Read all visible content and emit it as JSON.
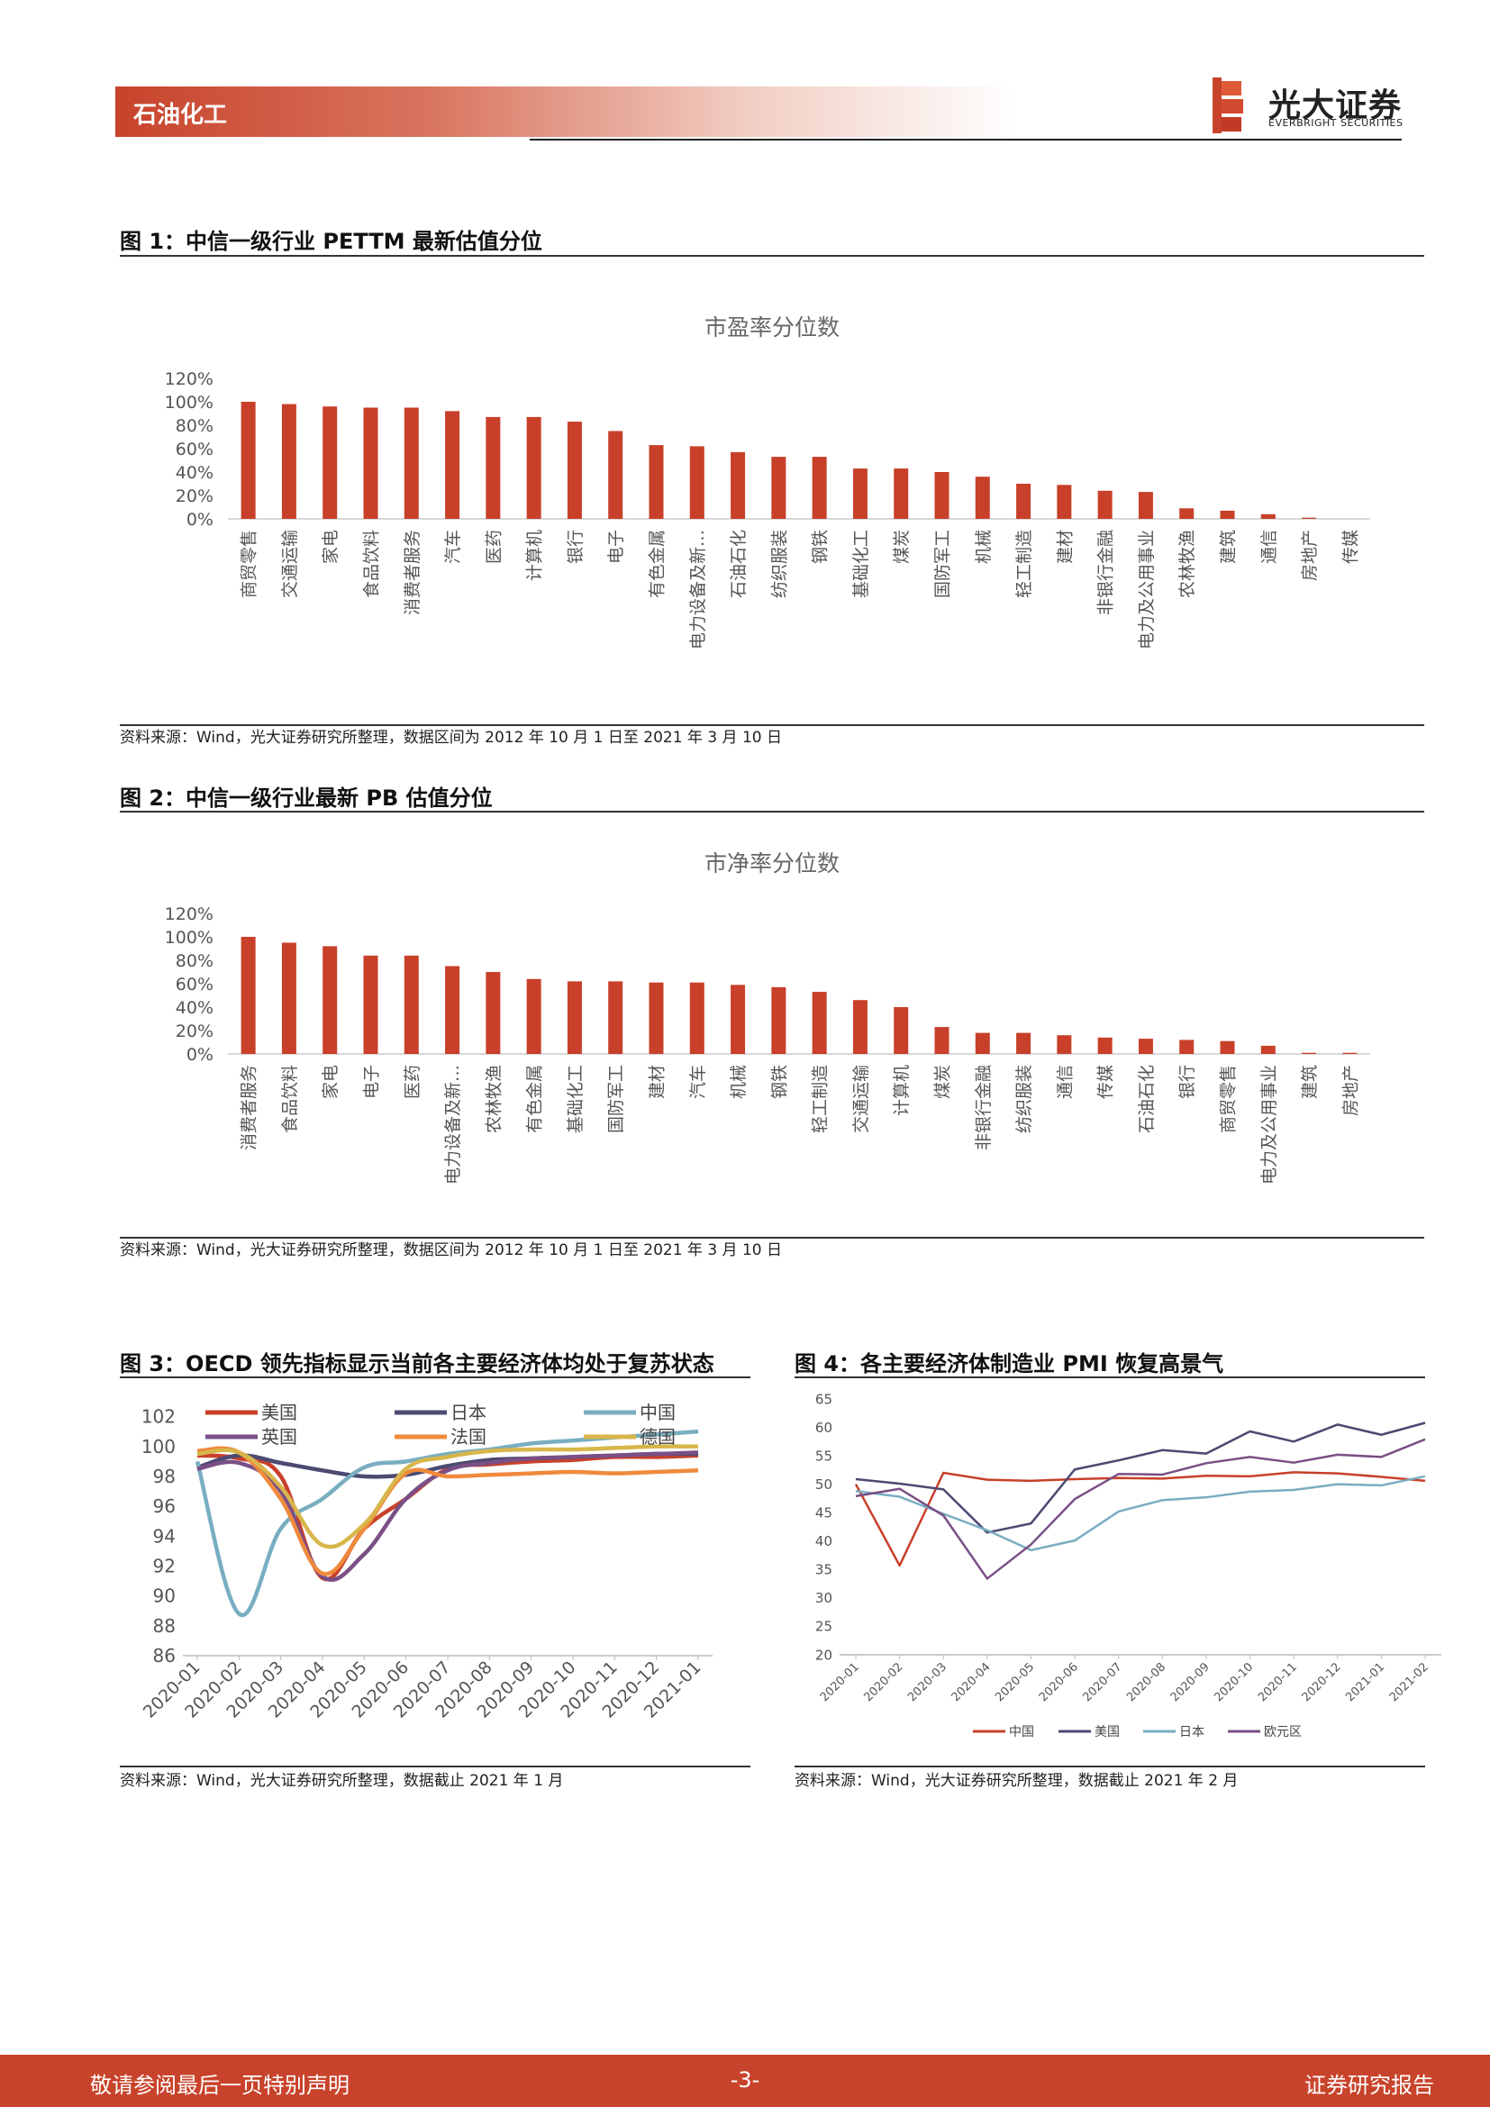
{
  "header": {
    "section": "石油化工",
    "logo_cn": "光大证券",
    "logo_en": "EVERBRIGHT SECURITIES"
  },
  "figures": {
    "fig1": {
      "title": "图 1：中信一级行业 PETTM 最新估值分位",
      "source": "资料来源：Wind，光大证券研究所整理，数据区间为 2012 年 10 月 1 日至 2021 年 3 月 10 日"
    },
    "fig2": {
      "title": "图 2：中信一级行业最新 PB 估值分位",
      "source": "资料来源：Wind，光大证券研究所整理，数据区间为 2012 年 10 月 1 日至 2021 年 3 月 10 日"
    },
    "fig3": {
      "title": "图 3：OECD 领先指标显示当前各主要经济体均处于复苏状态",
      "source": "资料来源：Wind，光大证券研究所整理，数据截止 2021 年 1 月"
    },
    "fig4": {
      "title": "图 4：各主要经济体制造业 PMI 恢复高景气",
      "source": "资料来源：Wind，光大证券研究所整理，数据截止 2021 年 2 月"
    }
  },
  "footer": {
    "left": "敬请参阅最后一页特别声明",
    "center": "-3-",
    "right": "证券研究报告"
  },
  "colors": {
    "brand": "#c8432b",
    "bar": "#c8402a"
  },
  "chart_data": [
    {
      "type": "bar",
      "title": "市盈率分位数",
      "categories": [
        "商贸零售",
        "交通运输",
        "家电",
        "食品饮料",
        "消费者服务",
        "汽车",
        "医药",
        "计算机",
        "银行",
        "电子",
        "有色金属",
        "电力设备及新…",
        "石油石化",
        "纺织服装",
        "钢铁",
        "基础化工",
        "煤炭",
        "国防军工",
        "机械",
        "轻工制造",
        "建材",
        "非银行金融",
        "电力及公用事业",
        "农林牧渔",
        "建筑",
        "通信",
        "房地产",
        "传媒"
      ],
      "values": [
        100,
        98,
        96,
        95,
        95,
        92,
        87,
        87,
        83,
        75,
        63,
        62,
        57,
        53,
        53,
        43,
        43,
        40,
        36,
        30,
        29,
        24,
        23,
        9,
        7,
        4,
        1,
        0
      ],
      "yticks": [
        "0%",
        "20%",
        "40%",
        "60%",
        "80%",
        "100%",
        "120%"
      ],
      "ylim": [
        0,
        120
      ]
    },
    {
      "type": "bar",
      "title": "市净率分位数",
      "categories": [
        "消费者服务",
        "食品饮料",
        "家电",
        "电子",
        "医药",
        "电力设备及新…",
        "农林牧渔",
        "有色金属",
        "基础化工",
        "国防军工",
        "建材",
        "汽车",
        "机械",
        "钢铁",
        "轻工制造",
        "交通运输",
        "计算机",
        "煤炭",
        "非银行金融",
        "纺织服装",
        "通信",
        "传媒",
        "石油石化",
        "银行",
        "商贸零售",
        "电力及公用事业",
        "建筑",
        "房地产"
      ],
      "values": [
        100,
        95,
        92,
        84,
        84,
        75,
        70,
        64,
        62,
        62,
        61,
        61,
        59,
        57,
        53,
        46,
        40,
        23,
        18,
        18,
        16,
        14,
        13,
        12,
        11,
        7,
        1,
        1
      ],
      "yticks": [
        "0%",
        "20%",
        "40%",
        "60%",
        "80%",
        "100%",
        "120%"
      ],
      "ylim": [
        0,
        120
      ]
    },
    {
      "type": "line",
      "x": [
        "2020-01",
        "2020-02",
        "2020-03",
        "2020-04",
        "2020-05",
        "2020-06",
        "2020-07",
        "2020-08",
        "2020-09",
        "2020-10",
        "2020-11",
        "2020-12",
        "2021-01"
      ],
      "yticks": [
        "86",
        "88",
        "90",
        "92",
        "94",
        "96",
        "98",
        "100",
        "102"
      ],
      "ylim": [
        86,
        103
      ],
      "legend_position": "top",
      "series": [
        {
          "name": "美国",
          "color": "#c8402a",
          "values": [
            99.4,
            99.2,
            98.0,
            91.2,
            94.5,
            96.5,
            98.5,
            98.8,
            99.0,
            99.1,
            99.3,
            99.3,
            99.4
          ]
        },
        {
          "name": "日本",
          "color": "#4b4a72",
          "values": [
            98.6,
            99.4,
            98.9,
            98.4,
            98.0,
            98.1,
            98.7,
            99.1,
            99.2,
            99.3,
            99.4,
            99.5,
            99.5
          ]
        },
        {
          "name": "中国",
          "color": "#79aec1",
          "values": [
            99.0,
            88.8,
            94.5,
            96.5,
            98.6,
            99.0,
            99.5,
            99.8,
            100.2,
            100.4,
            100.6,
            100.8,
            101.0
          ]
        },
        {
          "name": "英国",
          "color": "#7a4f86",
          "values": [
            98.5,
            98.9,
            97.0,
            91.3,
            92.8,
            96.5,
            98.4,
            98.9,
            99.2,
            99.3,
            99.4,
            99.5,
            99.6
          ]
        },
        {
          "name": "法国",
          "color": "#ef8a3c",
          "values": [
            99.7,
            99.6,
            96.5,
            91.5,
            94.5,
            98.2,
            98.0,
            98.1,
            98.2,
            98.3,
            98.2,
            98.3,
            98.4
          ]
        },
        {
          "name": "德国",
          "color": "#d8b64b",
          "values": [
            99.5,
            99.6,
            97.3,
            93.4,
            94.8,
            98.5,
            99.3,
            99.7,
            99.8,
            99.8,
            99.9,
            100.0,
            100.0
          ]
        }
      ]
    },
    {
      "type": "line",
      "x": [
        "2020-01",
        "2020-02",
        "2020-03",
        "2020-04",
        "2020-05",
        "2020-06",
        "2020-07",
        "2020-08",
        "2020-09",
        "2020-10",
        "2020-11",
        "2020-12",
        "2021-01",
        "2021-02"
      ],
      "yticks": [
        "20",
        "25",
        "30",
        "35",
        "40",
        "45",
        "50",
        "55",
        "60",
        "65"
      ],
      "ylim": [
        20,
        65
      ],
      "legend_position": "bottom",
      "series": [
        {
          "name": "中国",
          "color": "#c8402a",
          "values": [
            50.0,
            35.7,
            52.0,
            50.8,
            50.6,
            50.9,
            51.1,
            51.0,
            51.5,
            51.4,
            52.1,
            51.9,
            51.3,
            50.6
          ]
        },
        {
          "name": "美国",
          "color": "#4b4a72",
          "values": [
            50.9,
            50.1,
            49.1,
            41.5,
            43.1,
            52.6,
            54.2,
            56.0,
            55.4,
            59.3,
            57.5,
            60.5,
            58.7,
            60.8
          ]
        },
        {
          "name": "日本",
          "color": "#79aec1",
          "values": [
            48.8,
            47.8,
            44.8,
            41.9,
            38.4,
            40.1,
            45.2,
            47.2,
            47.7,
            48.7,
            49.0,
            50.0,
            49.8,
            51.4
          ]
        },
        {
          "name": "欧元区",
          "color": "#7a4f86",
          "values": [
            47.9,
            49.2,
            44.5,
            33.4,
            39.4,
            47.4,
            51.8,
            51.7,
            53.7,
            54.8,
            53.8,
            55.2,
            54.8,
            57.9
          ]
        }
      ]
    }
  ]
}
